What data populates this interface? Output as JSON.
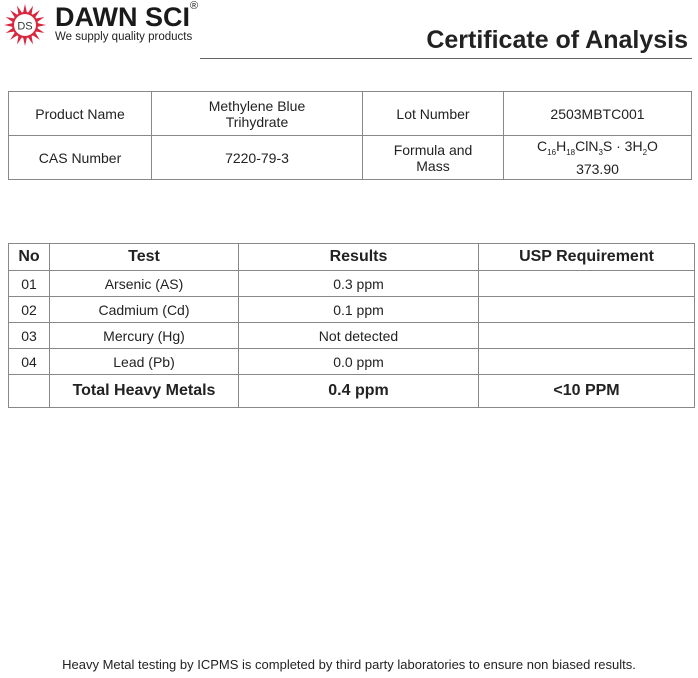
{
  "header": {
    "brand": "DAWN SCI",
    "registered": "®",
    "logo_letters": "DS",
    "tagline": "We supply quality products",
    "title": "Certificate of Analysis",
    "logo_color": "#d7263d"
  },
  "info": {
    "product_name_label": "Product Name",
    "product_name_line1": "Methylene Blue",
    "product_name_line2": "Trihydrate",
    "lot_label": "Lot Number",
    "lot_value": "2503MBTC001",
    "cas_label": "CAS Number",
    "cas_value": "7220-79-3",
    "formula_label_line1": "Formula and",
    "formula_label_line2": "Mass",
    "formula": {
      "c": "C",
      "c_n": "16",
      "h": "H",
      "h_n": "18",
      "cln": "ClN",
      "n_n": "3",
      "s": "S · 3H",
      "w_n": "2",
      "o": "O"
    },
    "mass": "373.90"
  },
  "tests": {
    "headers": [
      "No",
      "Test",
      "Results",
      "USP Requirement"
    ],
    "rows": [
      {
        "no": "01",
        "test": "Arsenic (AS)",
        "result": "0.3 ppm",
        "req": ""
      },
      {
        "no": "02",
        "test": "Cadmium (Cd)",
        "result": "0.1 ppm",
        "req": ""
      },
      {
        "no": "03",
        "test": "Mercury (Hg)",
        "result": "Not detected",
        "req": ""
      },
      {
        "no": "04",
        "test": "Lead (Pb)",
        "result": "0.0 ppm",
        "req": ""
      }
    ],
    "total": {
      "label": "Total Heavy Metals",
      "result": "0.4 ppm",
      "req": "<10 PPM"
    }
  },
  "footer": "Heavy Metal testing by ICPMS  is completed by third party laboratories  to ensure non biased results."
}
